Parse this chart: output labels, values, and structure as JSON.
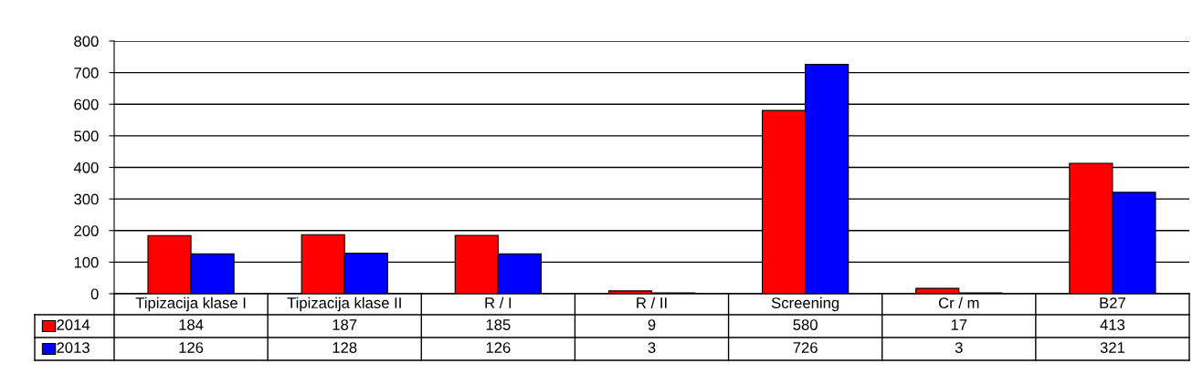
{
  "chart_data": {
    "type": "bar",
    "categories": [
      "Tipizacija klase I",
      "Tipizacija klase II",
      "R / I",
      "R / II",
      "Screening",
      "Cr / m",
      "B27"
    ],
    "series": [
      {
        "name": "2014",
        "color": "#ff0000",
        "values": [
          184,
          187,
          185,
          9,
          580,
          17,
          413
        ]
      },
      {
        "name": "2013",
        "color": "#0000ff",
        "values": [
          126,
          128,
          126,
          3,
          726,
          3,
          321
        ]
      }
    ],
    "ylim": [
      0,
      800
    ],
    "yticks": [
      0,
      100,
      200,
      300,
      400,
      500,
      600,
      700,
      800
    ],
    "grid": "y",
    "data_labels": true,
    "legend": "bottom left"
  }
}
